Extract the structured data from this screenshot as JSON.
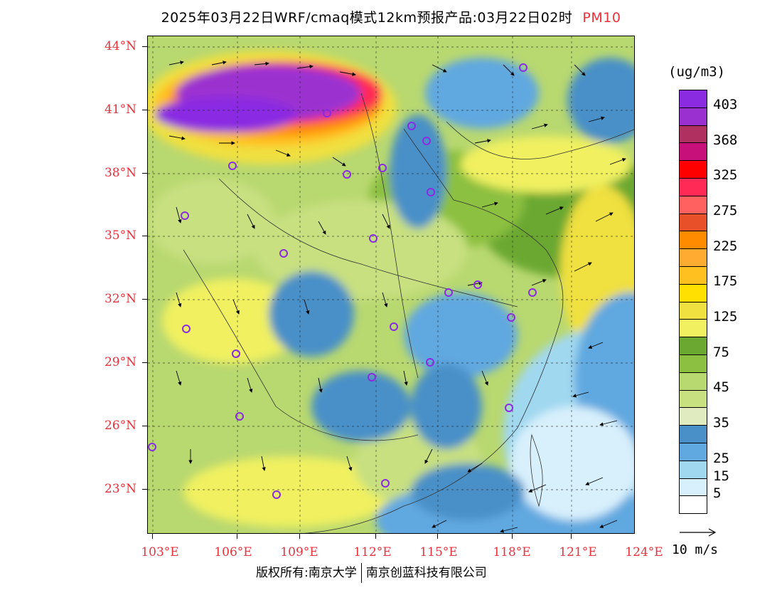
{
  "title": {
    "main": "2025年03月22日WRF/cmaq模式12km预报产品:03月22日02时",
    "pollutant": "PM10"
  },
  "axes": {
    "lat_labels": [
      "44°N",
      "41°N",
      "38°N",
      "35°N",
      "32°N",
      "29°N",
      "26°N",
      "23°N"
    ],
    "lon_labels": [
      "103°E",
      "106°E",
      "109°E",
      "112°E",
      "115°E",
      "118°E",
      "121°E",
      "124°E"
    ]
  },
  "legend": {
    "unit": "(ug/m3)",
    "labels": [
      "403",
      "368",
      "325",
      "275",
      "225",
      "175",
      "125",
      "75",
      "45",
      "35",
      "25",
      "15",
      "5"
    ],
    "colors": [
      "#8a2be2",
      "#9b30d0",
      "#b03060",
      "#c8107a",
      "#ff0000",
      "#ff2a55",
      "#ff6060",
      "#e8502a",
      "#ff8c00",
      "#ffaa30",
      "#ffc020",
      "#ffe000",
      "#f0e040",
      "#f0f060",
      "#6aa832",
      "#8cc040",
      "#b8d870",
      "#c8e080",
      "#e0ecc0",
      "#4a90c8",
      "#60a8e0",
      "#a0d8f0",
      "#d8f0fc",
      "#ffffff"
    ]
  },
  "wind_scale": {
    "label": "10 m/s"
  },
  "copyright": {
    "left": "版权所有:南京大学",
    "right": "南京创蓝科技有限公司"
  },
  "colors": {
    "axis_text": "#e8323c",
    "city_marker": "#8a2be2"
  }
}
